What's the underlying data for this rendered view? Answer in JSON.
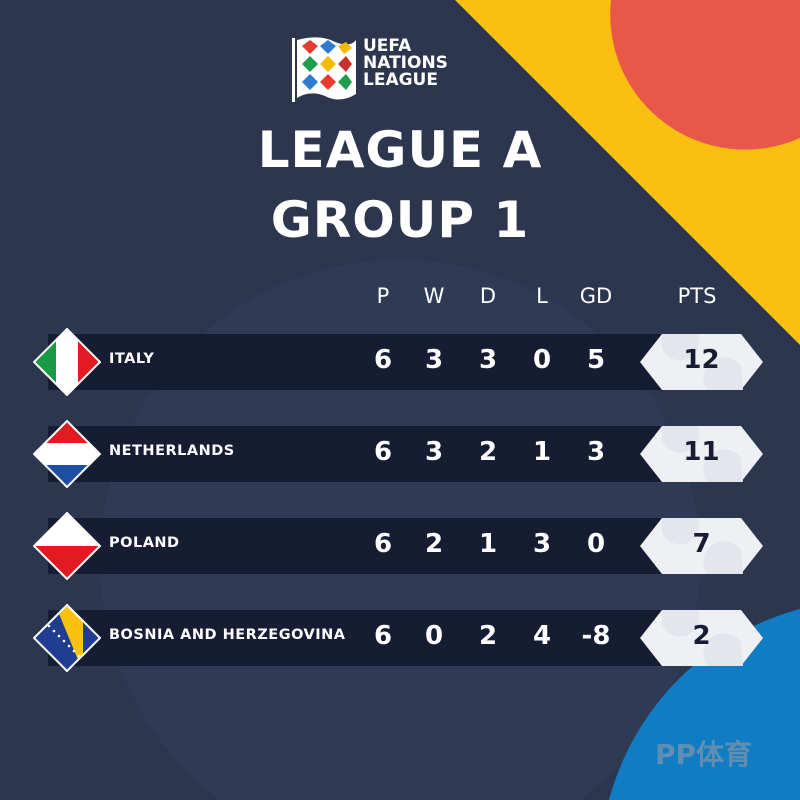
{
  "brand": {
    "logo_text": [
      "UEFA",
      "NATIONS",
      "LEAGUE"
    ],
    "watermark": "PP体育"
  },
  "title": {
    "line1": "LEAGUE A",
    "line2": "GROUP 1"
  },
  "columns": [
    "P",
    "W",
    "D",
    "L",
    "GD",
    "PTS"
  ],
  "colors": {
    "background": "#2c374f",
    "row": "#161d33",
    "yellow": "#fbbf12",
    "red": "#e8574a",
    "blue": "#0f7cc4",
    "pts_badge": "#eef0f4"
  },
  "teams": [
    {
      "name": "ITALY",
      "flag": "italy-flag",
      "P": "6",
      "W": "3",
      "D": "3",
      "L": "0",
      "GD": "5",
      "PTS": "12"
    },
    {
      "name": "NETHERLANDS",
      "flag": "netherlands-flag",
      "P": "6",
      "W": "3",
      "D": "2",
      "L": "1",
      "GD": "3",
      "PTS": "11"
    },
    {
      "name": "POLAND",
      "flag": "poland-flag",
      "P": "6",
      "W": "2",
      "D": "1",
      "L": "3",
      "GD": "0",
      "PTS": "7"
    },
    {
      "name": "BOSNIA AND HERZEGOVINA",
      "flag": "bosnia-flag",
      "P": "6",
      "W": "0",
      "D": "2",
      "L": "4",
      "GD": "-8",
      "PTS": "2"
    }
  ]
}
